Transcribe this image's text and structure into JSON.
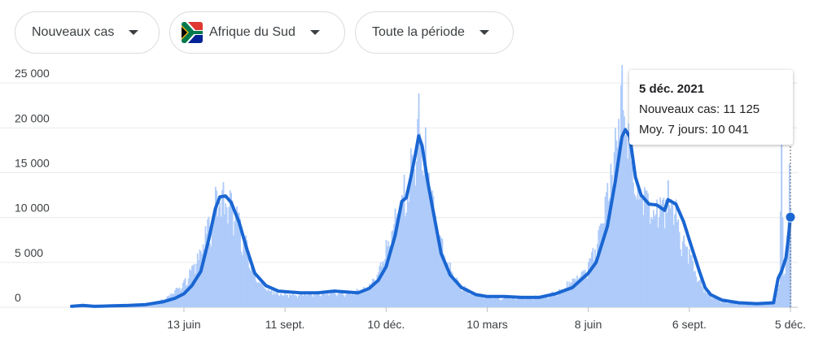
{
  "filters": {
    "metric": "Nouveaux cas",
    "country": "Afrique du Sud",
    "period": "Toute la période"
  },
  "tooltip": {
    "date": "5 déc. 2021",
    "new_cases": "Nouveaux cas: 11 125",
    "avg": "Moy. 7 jours: 10 041"
  },
  "colors": {
    "line": "#1a66d2",
    "bars": "#aecbfa",
    "grid": "#e8eaed",
    "text": "#3c4043"
  },
  "chart_data": {
    "type": "bar",
    "title": "",
    "xlabel": "",
    "ylabel": "",
    "ylim": [
      0,
      27000
    ],
    "yticks": [
      0,
      5000,
      10000,
      15000,
      20000,
      25000
    ],
    "ytick_labels": [
      "0",
      "5 000",
      "10 000",
      "15 000",
      "20 000",
      "25 000"
    ],
    "xlim": [
      "2020-03-05",
      "2021-12-05"
    ],
    "xticks": [
      {
        "date": "2020-06-13",
        "label": "13 juin"
      },
      {
        "date": "2020-09-11",
        "label": "11 sept."
      },
      {
        "date": "2020-12-10",
        "label": "10 déc."
      },
      {
        "date": "2021-03-10",
        "label": "10 mars"
      },
      {
        "date": "2021-06-08",
        "label": "8 juin"
      },
      {
        "date": "2021-09-06",
        "label": "6 sept."
      },
      {
        "date": "2021-12-05",
        "label": "5 déc."
      }
    ],
    "series": [
      {
        "name": "Nouveaux cas",
        "kind": "bar",
        "points": [
          [
            "2020-03-05",
            0
          ],
          [
            "2020-03-20",
            100
          ],
          [
            "2020-04-05",
            130
          ],
          [
            "2020-04-20",
            180
          ],
          [
            "2020-05-05",
            300
          ],
          [
            "2020-05-20",
            700
          ],
          [
            "2020-06-01",
            1500
          ],
          [
            "2020-06-13",
            3000
          ],
          [
            "2020-06-25",
            6000
          ],
          [
            "2020-07-05",
            10000
          ],
          [
            "2020-07-12",
            13000
          ],
          [
            "2020-07-18",
            13500
          ],
          [
            "2020-07-25",
            12500
          ],
          [
            "2020-08-01",
            10500
          ],
          [
            "2020-08-08",
            7000
          ],
          [
            "2020-08-15",
            4000
          ],
          [
            "2020-08-22",
            2500
          ],
          [
            "2020-09-01",
            1800
          ],
          [
            "2020-09-11",
            1600
          ],
          [
            "2020-09-25",
            1600
          ],
          [
            "2020-10-10",
            1700
          ],
          [
            "2020-10-25",
            1800
          ],
          [
            "2020-11-10",
            1700
          ],
          [
            "2020-11-25",
            2600
          ],
          [
            "2020-12-05",
            5000
          ],
          [
            "2020-12-10",
            7500
          ],
          [
            "2020-12-18",
            11000
          ],
          [
            "2020-12-26",
            14000
          ],
          [
            "2021-01-02",
            17000
          ],
          [
            "2021-01-08",
            22000
          ],
          [
            "2021-01-14",
            19000
          ],
          [
            "2021-01-20",
            13000
          ],
          [
            "2021-01-27",
            8000
          ],
          [
            "2021-02-03",
            5000
          ],
          [
            "2021-02-12",
            3000
          ],
          [
            "2021-02-25",
            1700
          ],
          [
            "2021-03-10",
            1300
          ],
          [
            "2021-03-25",
            1200
          ],
          [
            "2021-04-10",
            1100
          ],
          [
            "2021-04-25",
            1300
          ],
          [
            "2021-05-10",
            1700
          ],
          [
            "2021-05-25",
            3200
          ],
          [
            "2021-06-08",
            5000
          ],
          [
            "2021-06-18",
            9000
          ],
          [
            "2021-06-28",
            16000
          ],
          [
            "2021-07-05",
            21000
          ],
          [
            "2021-07-08",
            26400
          ],
          [
            "2021-07-15",
            19000
          ],
          [
            "2021-07-22",
            14000
          ],
          [
            "2021-07-30",
            13000
          ],
          [
            "2021-08-08",
            12000
          ],
          [
            "2021-08-18",
            14000
          ],
          [
            "2021-08-25",
            12000
          ],
          [
            "2021-09-01",
            8000
          ],
          [
            "2021-09-06",
            6500
          ],
          [
            "2021-09-15",
            3000
          ],
          [
            "2021-09-25",
            1500
          ],
          [
            "2021-10-05",
            700
          ],
          [
            "2021-10-20",
            400
          ],
          [
            "2021-11-05",
            300
          ],
          [
            "2021-11-20",
            500
          ],
          [
            "2021-11-25",
            2500
          ],
          [
            "2021-11-27",
            18500
          ],
          [
            "2021-11-29",
            3500
          ],
          [
            "2021-12-02",
            8000
          ],
          [
            "2021-12-04",
            16000
          ],
          [
            "2021-12-05",
            11125
          ]
        ]
      },
      {
        "name": "Moy. 7 jours",
        "kind": "line",
        "points": [
          [
            "2020-03-05",
            100
          ],
          [
            "2020-03-15",
            200
          ],
          [
            "2020-03-25",
            100
          ],
          [
            "2020-04-10",
            150
          ],
          [
            "2020-04-25",
            200
          ],
          [
            "2020-05-10",
            300
          ],
          [
            "2020-05-25",
            600
          ],
          [
            "2020-06-05",
            1000
          ],
          [
            "2020-06-13",
            1500
          ],
          [
            "2020-06-20",
            2400
          ],
          [
            "2020-06-28",
            4000
          ],
          [
            "2020-07-05",
            7500
          ],
          [
            "2020-07-11",
            11000
          ],
          [
            "2020-07-15",
            12300
          ],
          [
            "2020-07-20",
            12400
          ],
          [
            "2020-07-25",
            11700
          ],
          [
            "2020-08-01",
            9500
          ],
          [
            "2020-08-08",
            6500
          ],
          [
            "2020-08-15",
            3800
          ],
          [
            "2020-08-25",
            2400
          ],
          [
            "2020-09-05",
            1800
          ],
          [
            "2020-09-15",
            1700
          ],
          [
            "2020-09-25",
            1600
          ],
          [
            "2020-10-10",
            1600
          ],
          [
            "2020-10-25",
            1800
          ],
          [
            "2020-11-05",
            1700
          ],
          [
            "2020-11-15",
            1600
          ],
          [
            "2020-11-25",
            2100
          ],
          [
            "2020-12-03",
            3000
          ],
          [
            "2020-12-10",
            4500
          ],
          [
            "2020-12-18",
            8000
          ],
          [
            "2020-12-24",
            11800
          ],
          [
            "2020-12-28",
            12200
          ],
          [
            "2021-01-01",
            14500
          ],
          [
            "2021-01-05",
            17000
          ],
          [
            "2021-01-08",
            19100
          ],
          [
            "2021-01-11",
            18000
          ],
          [
            "2021-01-16",
            14000
          ],
          [
            "2021-01-22",
            10000
          ],
          [
            "2021-01-28",
            6000
          ],
          [
            "2021-02-05",
            3600
          ],
          [
            "2021-02-15",
            2200
          ],
          [
            "2021-02-28",
            1400
          ],
          [
            "2021-03-10",
            1200
          ],
          [
            "2021-03-25",
            1200
          ],
          [
            "2021-04-10",
            1100
          ],
          [
            "2021-04-25",
            1100
          ],
          [
            "2021-05-10",
            1500
          ],
          [
            "2021-05-25",
            2200
          ],
          [
            "2021-06-08",
            3800
          ],
          [
            "2021-06-15",
            5000
          ],
          [
            "2021-06-25",
            9000
          ],
          [
            "2021-07-02",
            14000
          ],
          [
            "2021-07-08",
            19000
          ],
          [
            "2021-07-11",
            19800
          ],
          [
            "2021-07-15",
            19000
          ],
          [
            "2021-07-20",
            14500
          ],
          [
            "2021-07-25",
            12500
          ],
          [
            "2021-08-01",
            11500
          ],
          [
            "2021-08-08",
            11400
          ],
          [
            "2021-08-15",
            10800
          ],
          [
            "2021-08-18",
            12000
          ],
          [
            "2021-08-25",
            11500
          ],
          [
            "2021-09-01",
            9500
          ],
          [
            "2021-09-06",
            7500
          ],
          [
            "2021-09-15",
            4000
          ],
          [
            "2021-09-20",
            2200
          ],
          [
            "2021-09-25",
            1400
          ],
          [
            "2021-10-05",
            800
          ],
          [
            "2021-10-20",
            500
          ],
          [
            "2021-11-05",
            400
          ],
          [
            "2021-11-20",
            500
          ],
          [
            "2021-11-24",
            3200
          ],
          [
            "2021-11-27",
            4000
          ],
          [
            "2021-12-01",
            5500
          ],
          [
            "2021-12-03",
            7500
          ],
          [
            "2021-12-05",
            10041
          ]
        ]
      }
    ]
  }
}
